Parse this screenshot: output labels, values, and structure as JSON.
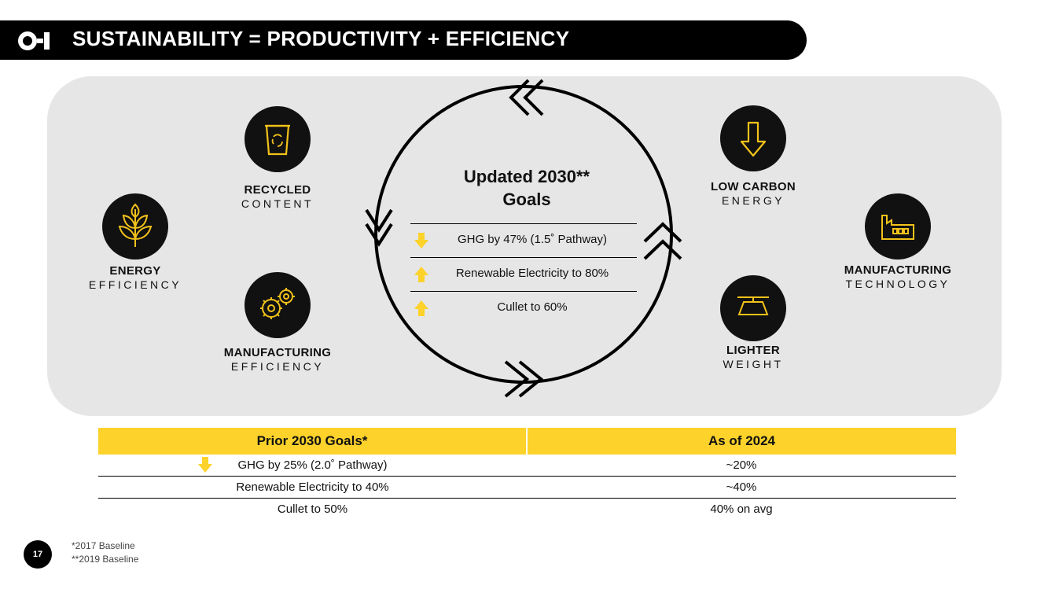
{
  "header": {
    "title": "SUSTAINABILITY = PRODUCTIVITY + EFFICIENCY",
    "logo": "O-I logo"
  },
  "brand_colors": {
    "accent": "#fcd22b",
    "dark": "#000000",
    "panel": "#e6e6e6"
  },
  "pillars": {
    "recycled": {
      "icon": "recycle-bin-icon",
      "bold": "RECYCLED",
      "light": "CONTENT"
    },
    "energy": {
      "icon": "plant-icon",
      "bold": "ENERGY",
      "light": "EFFICIENCY"
    },
    "manufacturing_eff": {
      "icon": "gears-icon",
      "bold": "MANUFACTURING",
      "light": "EFFICIENCY"
    },
    "low_carbon": {
      "icon": "down-arrow-icon",
      "bold": "LOW CARBON",
      "light": "ENERGY"
    },
    "manufacturing_tech": {
      "icon": "factory-icon",
      "bold": "MANUFACTURING",
      "light": "TECHNOLOGY"
    },
    "lighter": {
      "icon": "scale-icon",
      "bold": "LIGHTER",
      "light": "WEIGHT"
    }
  },
  "updated_goals": {
    "title_line1": "Updated 2030**",
    "title_line2": "Goals",
    "items": [
      {
        "direction": "down",
        "text": "GHG by 47% (1.5˚ Pathway)"
      },
      {
        "direction": "up",
        "text": "Renewable Electricity to 80%"
      },
      {
        "direction": "up",
        "text": "Cullet to 60%"
      }
    ]
  },
  "prior_table": {
    "headers": [
      "Prior 2030 Goals*",
      "As of 2024"
    ],
    "rows": [
      {
        "goal": "GHG by 25% (2.0˚ Pathway)",
        "status": "~20%",
        "arrow": "down"
      },
      {
        "goal": "Renewable Electricity to 40%",
        "status": "~40%"
      },
      {
        "goal": "Cullet to 50%",
        "status": "40% on avg"
      }
    ]
  },
  "footnotes": [
    "*2017 Baseline",
    "**2019 Baseline"
  ],
  "page_number": "17"
}
